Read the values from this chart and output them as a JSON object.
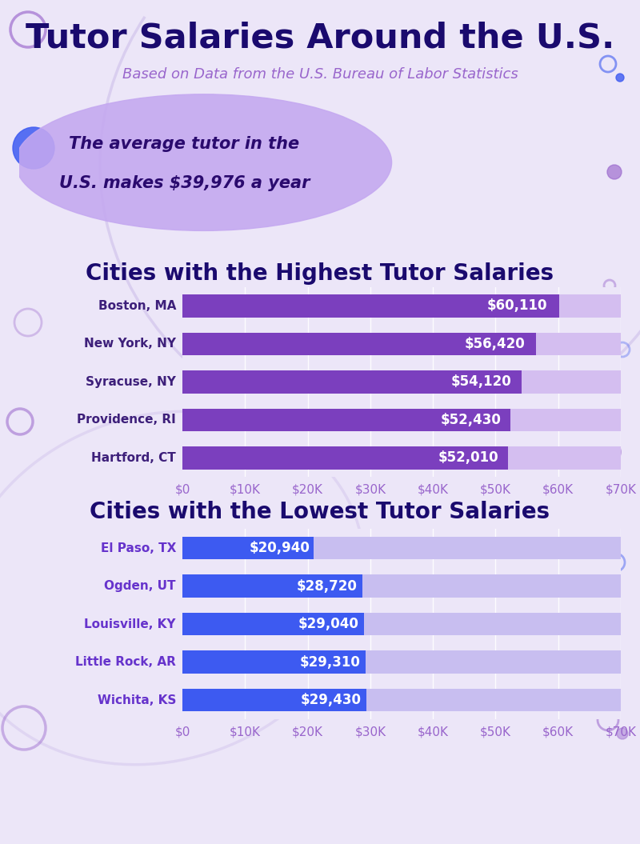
{
  "title": "Tutor Salaries Around the U.S.",
  "subtitle": "Based on Data from the U.S. Bureau of Labor Statistics",
  "avg_text_line1": "The average tutor in the",
  "avg_text_line2": "U.S. makes $39,976 a year",
  "bg_color": "#ece6f8",
  "highest_title": "Cities with the Highest Tutor Salaries",
  "lowest_title": "Cities with the Lowest Tutor Salaries",
  "highest_cities": [
    "Boston, MA",
    "New York, NY",
    "Syracuse, NY",
    "Providence, RI",
    "Hartford, CT"
  ],
  "highest_values": [
    60110,
    56420,
    54120,
    52430,
    52010
  ],
  "highest_labels": [
    "$60,110",
    "$56,420",
    "$54,120",
    "$52,430",
    "$52,010"
  ],
  "highest_bar_color": "#7b3fbe",
  "highest_bg_bar_color": "#d4bef0",
  "lowest_cities": [
    "El Paso, TX",
    "Ogden, UT",
    "Louisville, KY",
    "Little Rock, AR",
    "Wichita, KS"
  ],
  "lowest_values": [
    20940,
    28720,
    29040,
    29310,
    29430
  ],
  "lowest_labels": [
    "$20,940",
    "$28,720",
    "$29,040",
    "$29,310",
    "$29,430"
  ],
  "lowest_bar_color": "#3d5af1",
  "lowest_bg_bar_color": "#c8bef0",
  "x_max": 70000,
  "x_ticks": [
    0,
    10000,
    20000,
    30000,
    40000,
    50000,
    60000,
    70000
  ],
  "x_tick_labels": [
    "$0",
    "$10K",
    "$20K",
    "$30K",
    "$40K",
    "$50K",
    "$60K",
    "$70K"
  ],
  "city_label_color_high": "#3d1f7a",
  "city_label_color_low": "#6633cc",
  "section_title_color": "#1a0a6e",
  "title_color": "#1a0a6e",
  "subtitle_color": "#9966cc"
}
